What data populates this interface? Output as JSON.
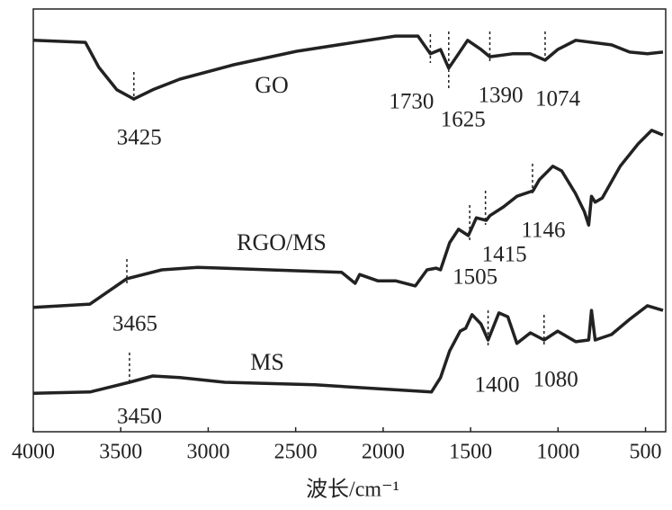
{
  "chart_data": {
    "type": "line",
    "xlabel": "波长/cm⁻¹",
    "xlim": [
      4000,
      400
    ],
    "ylim": [
      0,
      100
    ],
    "xticks": [
      4000,
      3500,
      3000,
      2500,
      2000,
      1500,
      1000,
      500
    ],
    "series": [
      {
        "name": "GO",
        "color": "#222222",
        "x": [
          4000,
          3702,
          3625,
          3522,
          3425,
          3317,
          3162,
          2854,
          2494,
          2134,
          1929,
          1801,
          1730,
          1672,
          1625,
          1569,
          1517,
          1440,
          1390,
          1261,
          1158,
          1074,
          1002,
          899,
          694,
          591,
          489,
          400
        ],
        "values": [
          92.6,
          92.1,
          86.2,
          80.9,
          78.7,
          80.9,
          83.4,
          86.8,
          90.0,
          92.3,
          93.6,
          93.6,
          89.4,
          90.4,
          86.0,
          89.4,
          92.6,
          90.4,
          88.7,
          89.4,
          89.4,
          87.9,
          90.4,
          92.6,
          91.5,
          89.8,
          89.4,
          89.8
        ]
      },
      {
        "name": "RGO/MS",
        "color": "#222222",
        "x": [
          4000,
          3676,
          3466,
          3265,
          3060,
          2649,
          2237,
          2160,
          2134,
          2031,
          1929,
          1816,
          1749,
          1697,
          1672,
          1620,
          1569,
          1513,
          1467,
          1410,
          1390,
          1312,
          1235,
          1143,
          1107,
          1030,
          979,
          901,
          850,
          825,
          809,
          788,
          747,
          645,
          542,
          465,
          400
        ],
        "values": [
          29.4,
          30.2,
          36.2,
          38.3,
          38.9,
          38.3,
          37.7,
          35.1,
          37.2,
          35.7,
          35.7,
          34.5,
          38.3,
          38.7,
          38.3,
          44.7,
          47.9,
          46.4,
          50.6,
          50.0,
          51.1,
          53.2,
          55.7,
          57.0,
          59.6,
          62.8,
          61.7,
          56.4,
          52.1,
          48.9,
          55.7,
          54.3,
          55.3,
          62.8,
          68.1,
          71.3,
          70.2
        ]
      },
      {
        "name": "MS",
        "color": "#222222",
        "x": [
          4000,
          3676,
          3450,
          3317,
          3162,
          2905,
          2391,
          2032,
          1724,
          1672,
          1620,
          1559,
          1528,
          1492,
          1441,
          1400,
          1338,
          1287,
          1235,
          1158,
          1080,
          1002,
          899,
          825,
          809,
          788,
          694,
          591,
          489,
          400
        ],
        "values": [
          9.1,
          9.4,
          11.7,
          13.2,
          12.8,
          11.7,
          11.1,
          10.2,
          9.4,
          12.8,
          19.1,
          23.8,
          24.5,
          27.7,
          25.5,
          21.7,
          28.1,
          27.2,
          20.9,
          23.4,
          21.7,
          23.8,
          21.3,
          21.7,
          28.7,
          21.7,
          23.0,
          26.6,
          29.8,
          28.7
        ]
      }
    ],
    "annotations": [
      {
        "text": "3425",
        "x": 3425
      },
      {
        "text": "1730",
        "x": 1730
      },
      {
        "text": "1625",
        "x": 1625
      },
      {
        "text": "1390",
        "x": 1390
      },
      {
        "text": "1074",
        "x": 1074
      },
      {
        "text": "3465",
        "x": 3465
      },
      {
        "text": "1505",
        "x": 1505
      },
      {
        "text": "1415",
        "x": 1415
      },
      {
        "text": "1146",
        "x": 1146
      },
      {
        "text": "3450",
        "x": 3450
      },
      {
        "text": "1400",
        "x": 1400
      },
      {
        "text": "1080",
        "x": 1080
      }
    ]
  }
}
